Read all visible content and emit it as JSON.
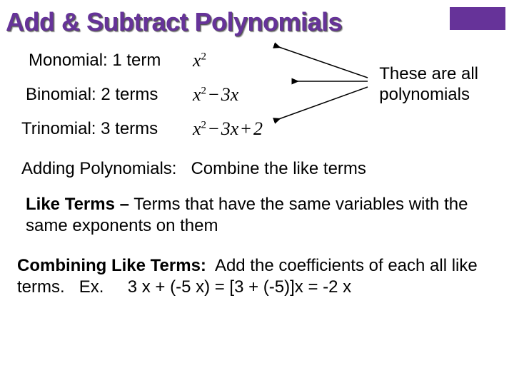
{
  "title": "Add & Subtract Polynomials",
  "rows": [
    {
      "def": "Monomial: 1 term",
      "expr_html": "x<sup>2</sup>"
    },
    {
      "def": "Binomial: 2 terms",
      "expr_html": "x<sup>2</sup><span class='op'>−</span>3x"
    },
    {
      "def": "Trinomial: 3 terms",
      "expr_html": "x<sup>2</sup><span class='op'>−</span>3x<span class='op'>+</span>2"
    }
  ],
  "callout": {
    "line1": "These are all",
    "line2": "polynomials"
  },
  "adding": {
    "label": "Adding Polynomials:",
    "text": "Combine the like terms"
  },
  "liketerms": {
    "label": "Like Terms –",
    "text": "Terms that have the same variables with the same exponents on them"
  },
  "combining": {
    "label": "Combining Like Terms:",
    "text1": "Add the coefficients of each all like terms.",
    "ex_label": "Ex.",
    "ex_expr": "3 x + (-5 x)   =  [3 + (-5)]x    =   -2 x"
  },
  "colors": {
    "title": "#663399",
    "corner": "#663399",
    "text": "#000000",
    "bg": "#ffffff"
  },
  "arrows": {
    "stroke": "#000000",
    "stroke_width": 1.5,
    "paths": [
      "M 10 10 L 140 55",
      "M 35 60 L 140 60",
      "M 10 115 L 140 68"
    ]
  }
}
